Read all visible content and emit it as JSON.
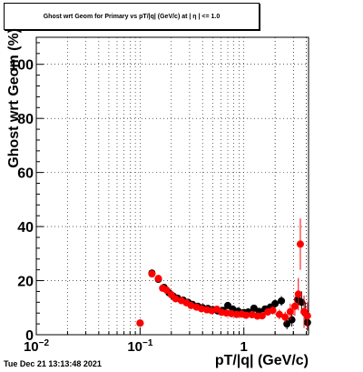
{
  "chart_data": {
    "type": "scatter",
    "title": "Ghost wrt Geom for Primary vs pT/|q| (GeV/c) at | η | <= 1.0",
    "xlabel": "pT/|q| (GeV/c)",
    "ylabel": "Ghost wrt Geom (%)",
    "xscale": "log",
    "xlim": [
      0.01,
      4.2
    ],
    "ylim": [
      0,
      110
    ],
    "grid": true,
    "x_ticks": [
      {
        "v": 0.01,
        "label": "10",
        "sup": "−2"
      },
      {
        "v": 0.1,
        "label": "10",
        "sup": "−1"
      },
      {
        "v": 1,
        "label": "1",
        "sup": ""
      }
    ],
    "y_ticks": [
      0,
      20,
      40,
      60,
      80,
      100
    ],
    "series": [
      {
        "color": "#000000",
        "points": [
          [
            0.1,
            4.3,
            1.0
          ],
          [
            0.13,
            22.8,
            1.2
          ],
          [
            0.15,
            20.5,
            1.0
          ],
          [
            0.17,
            17.5,
            0.8
          ],
          [
            0.19,
            15.5,
            0.8
          ],
          [
            0.21,
            14.2,
            0.7
          ],
          [
            0.23,
            13.5,
            0.7
          ],
          [
            0.26,
            12.8,
            0.6
          ],
          [
            0.29,
            12.0,
            0.6
          ],
          [
            0.32,
            11.2,
            0.6
          ],
          [
            0.36,
            10.5,
            0.6
          ],
          [
            0.4,
            10.0,
            0.6
          ],
          [
            0.45,
            9.7,
            0.6
          ],
          [
            0.5,
            9.3,
            0.7
          ],
          [
            0.56,
            8.8,
            0.7
          ],
          [
            0.63,
            9.0,
            0.7
          ],
          [
            0.7,
            10.8,
            0.8
          ],
          [
            0.78,
            9.5,
            0.8
          ],
          [
            0.88,
            8.7,
            0.8
          ],
          [
            1.0,
            8.2,
            0.9
          ],
          [
            1.1,
            8.4,
            0.9
          ],
          [
            1.25,
            9.8,
            1.0
          ],
          [
            1.4,
            8.6,
            1.0
          ],
          [
            1.6,
            9.5,
            1.2
          ],
          [
            1.8,
            10.2,
            1.3
          ],
          [
            2.0,
            11.5,
            1.5
          ],
          [
            2.3,
            12.5,
            1.8
          ],
          [
            2.6,
            4.0,
            2.0
          ],
          [
            2.9,
            5.5,
            2.5
          ],
          [
            3.3,
            13.0,
            3.0
          ],
          [
            3.6,
            12.0,
            4.0
          ],
          [
            3.9,
            8.0,
            4.0
          ],
          [
            4.1,
            4.5,
            3.0
          ]
        ]
      },
      {
        "color": "#ff0000",
        "points": [
          [
            0.1,
            4.3,
            1.0
          ],
          [
            0.13,
            22.5,
            1.2
          ],
          [
            0.15,
            20.8,
            1.0
          ],
          [
            0.165,
            17.2,
            0.8
          ],
          [
            0.18,
            16.5,
            0.8
          ],
          [
            0.2,
            14.8,
            0.7
          ],
          [
            0.22,
            13.3,
            0.7
          ],
          [
            0.25,
            12.6,
            0.6
          ],
          [
            0.28,
            11.8,
            0.6
          ],
          [
            0.31,
            10.8,
            0.6
          ],
          [
            0.35,
            10.2,
            0.6
          ],
          [
            0.39,
            9.6,
            0.6
          ],
          [
            0.44,
            9.2,
            0.6
          ],
          [
            0.49,
            8.9,
            0.7
          ],
          [
            0.55,
            9.4,
            0.7
          ],
          [
            0.61,
            8.3,
            0.7
          ],
          [
            0.68,
            8.0,
            0.8
          ],
          [
            0.76,
            7.8,
            0.8
          ],
          [
            0.85,
            7.5,
            0.8
          ],
          [
            0.95,
            7.6,
            0.9
          ],
          [
            1.05,
            7.2,
            0.9
          ],
          [
            1.2,
            7.4,
            1.0
          ],
          [
            1.35,
            6.9,
            1.0
          ],
          [
            1.5,
            7.0,
            1.2
          ],
          [
            1.7,
            8.4,
            1.3
          ],
          [
            1.9,
            9.0,
            1.5
          ],
          [
            2.2,
            7.5,
            1.8
          ],
          [
            2.5,
            6.5,
            2.0
          ],
          [
            2.8,
            8.5,
            3.0
          ],
          [
            3.1,
            10.5,
            3.5
          ],
          [
            3.35,
            15.0,
            6.0
          ],
          [
            3.5,
            33.5,
            9.5
          ],
          [
            3.8,
            8.5,
            6.0
          ],
          [
            4.1,
            7.0,
            5.0
          ]
        ]
      }
    ]
  },
  "timestamp": "Tue Dec 21 13:13:48 2021"
}
